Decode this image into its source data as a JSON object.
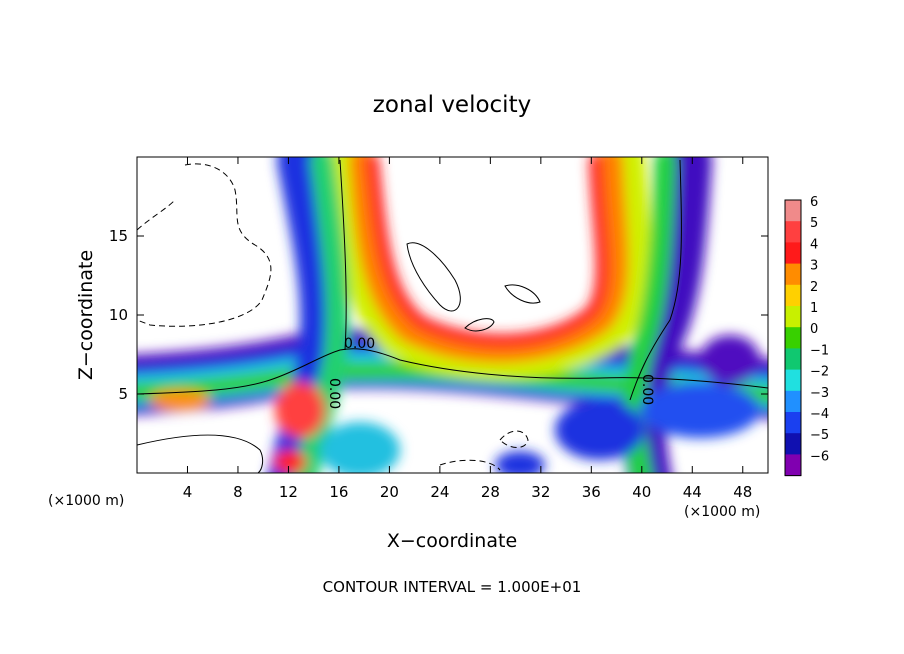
{
  "chart_data": {
    "type": "heatmap",
    "title": "zonal velocity",
    "xlabel": "X−coordinate",
    "ylabel": "Z−coordinate",
    "x_unit": "(×1000 m)",
    "y_unit": "(×1000 m)",
    "xlim": [
      0,
      50
    ],
    "ylim": [
      0,
      20
    ],
    "x_ticks": [
      4,
      8,
      12,
      16,
      20,
      24,
      28,
      32,
      36,
      40,
      44,
      48
    ],
    "y_ticks": [
      5,
      10,
      15
    ],
    "x_tick_labels": [
      "4",
      "8",
      "12",
      "16",
      "20",
      "24",
      "28",
      "32",
      "36",
      "40",
      "44",
      "48"
    ],
    "y_tick_labels": [
      "5",
      "10",
      "15"
    ],
    "colorbar": {
      "levels": [
        6,
        5,
        4,
        3,
        2,
        1,
        0,
        -1,
        -2,
        -3,
        -4,
        -5,
        -6
      ],
      "labels": [
        "6",
        "5",
        "4",
        "3",
        "2",
        "1",
        "0",
        "−1",
        "−2",
        "−3",
        "−4",
        "−5",
        "−6"
      ],
      "colors": [
        "#f08a8a",
        "#ff4040",
        "#ff1a1a",
        "#ff8c00",
        "#ffd000",
        "#c8f000",
        "#38d000",
        "#10c870",
        "#20e0e0",
        "#2090ff",
        "#1a40f0",
        "#1010b0",
        "#8000b0"
      ]
    },
    "contour_labels": [
      "0.00",
      "0.00",
      "0.00"
    ],
    "footer": "CONTOUR INTERVAL = 1.000E+01"
  }
}
